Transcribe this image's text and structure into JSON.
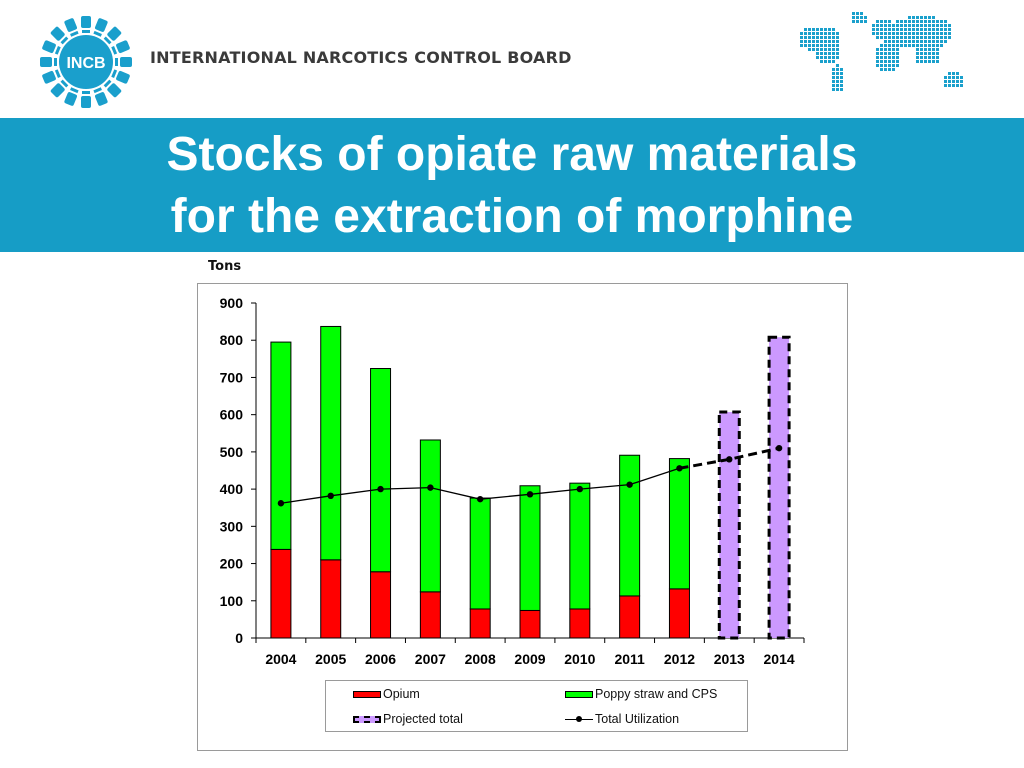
{
  "header": {
    "logo_text": "INCB",
    "org_name": "INTERNATIONAL NARCOTICS CONTROL BOARD",
    "map_icon": "world-map-icon"
  },
  "banner": {
    "title_line1": "Stocks of opiate raw materials",
    "title_line2": "for the extraction of morphine",
    "color": "#169dc6"
  },
  "chart_data": {
    "type": "bar",
    "unit_label": "Tons",
    "categories": [
      "2004",
      "2005",
      "2006",
      "2007",
      "2008",
      "2009",
      "2010",
      "2011",
      "2012",
      "2013",
      "2014"
    ],
    "ylim": [
      0,
      900
    ],
    "yticks": [
      0,
      100,
      200,
      300,
      400,
      500,
      600,
      700,
      800,
      900
    ],
    "grid": false,
    "stacked": true,
    "series": [
      {
        "name": "Opium",
        "color": "#ff0000",
        "values": [
          238,
          210,
          178,
          124,
          78,
          74,
          78,
          113,
          132,
          null,
          null
        ]
      },
      {
        "name": "Poppy straw and CPS",
        "color": "#00ff00",
        "values": [
          557,
          627,
          546,
          408,
          298,
          335,
          338,
          378,
          350,
          null,
          null
        ]
      },
      {
        "name": "Projected total",
        "color": "#cc99ff",
        "style": "dashed-outline",
        "values": [
          null,
          null,
          null,
          null,
          null,
          null,
          null,
          null,
          null,
          607,
          808
        ]
      },
      {
        "name": "Total Utilization",
        "type": "line",
        "color": "#000000",
        "values": [
          362,
          382,
          400,
          404,
          373,
          386,
          400,
          412,
          456,
          480,
          510
        ],
        "projected_from": "2012"
      }
    ],
    "legend": {
      "placement": "bottom",
      "entries": [
        "Opium",
        "Poppy straw and CPS",
        "Projected total",
        "Total Utilization"
      ]
    }
  }
}
